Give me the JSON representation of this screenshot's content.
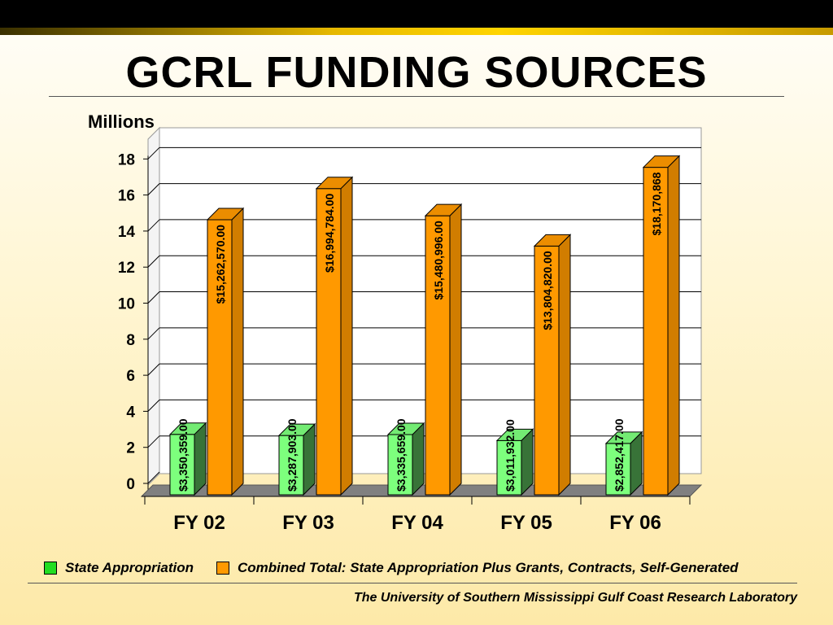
{
  "title": "GCRL FUNDING SOURCES",
  "footer": "The University of Southern Mississippi  Gulf Coast Research Laboratory",
  "chart_data": {
    "type": "bar",
    "ylabel": "Millions",
    "ylim": [
      0,
      18
    ],
    "yticks": [
      0,
      2,
      4,
      6,
      8,
      10,
      12,
      14,
      16,
      18
    ],
    "categories": [
      "FY 02",
      "FY 03",
      "FY 04",
      "FY 05",
      "FY 06"
    ],
    "grid": true,
    "legend_position": "bottom",
    "series": [
      {
        "name": "State Appropriation",
        "color": "#7dff7d",
        "values": [
          3.35,
          3.29,
          3.34,
          3.01,
          2.85
        ],
        "labels": [
          "$3,350,359.00",
          "$3,287,903.00",
          "$3,335,659.00",
          "$3,011,932.00",
          "$2,852,417.00"
        ]
      },
      {
        "name": "Combined Total: State Appropriation Plus Grants, Contracts, Self-Generated",
        "color": "#ff9900",
        "values": [
          15.26,
          16.99,
          15.48,
          13.8,
          18.17
        ],
        "labels": [
          "$15,262,570.00",
          "$16,994,784.00",
          "$15,480,996.00",
          "$13,804,820.00",
          "$18,170,868"
        ]
      }
    ]
  }
}
